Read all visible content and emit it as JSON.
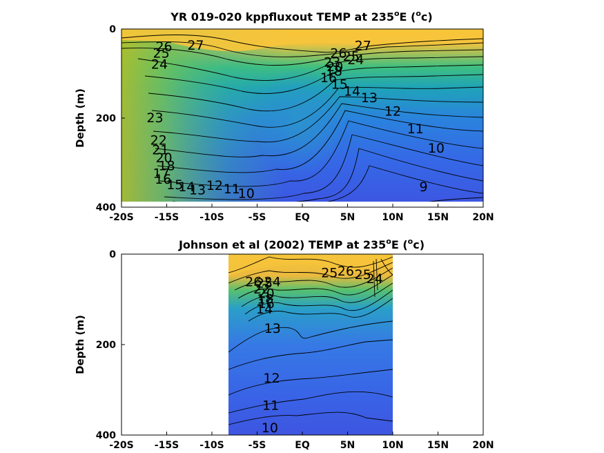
{
  "chart_data": [
    {
      "type": "contour",
      "title_prefix": "YR 019-020 kppfluxout TEMP at 235",
      "title_deg": "o",
      "title_mid": "E (",
      "title_unit": "o",
      "title_end": "c)",
      "ylabel": "Depth (m)",
      "xlim": [
        -20,
        20
      ],
      "ylim": [
        0,
        400
      ],
      "y_reversed": true,
      "x_ticks": [
        {
          "v": -20,
          "label": "-20S"
        },
        {
          "v": -15,
          "label": "-15S"
        },
        {
          "v": -10,
          "label": "-10S"
        },
        {
          "v": -5,
          "label": "-5S"
        },
        {
          "v": 0,
          "label": "EQ"
        },
        {
          "v": 5,
          "label": "5N"
        },
        {
          "v": 10,
          "label": "10N"
        },
        {
          "v": 15,
          "label": "15N"
        },
        {
          "v": 20,
          "label": "20N"
        }
      ],
      "y_ticks": [
        {
          "v": 0,
          "label": "0"
        },
        {
          "v": 200,
          "label": "200"
        },
        {
          "v": 400,
          "label": "400"
        }
      ],
      "data_extent": {
        "x": [
          -20,
          20
        ],
        "y": [
          5,
          385
        ]
      },
      "contour_labels": [
        {
          "x": -15.3,
          "y": 40,
          "t": "26"
        },
        {
          "x": -15.6,
          "y": 55,
          "t": "25"
        },
        {
          "x": -15.8,
          "y": 80,
          "t": "24"
        },
        {
          "x": -11.8,
          "y": 37,
          "t": "27"
        },
        {
          "x": 6.7,
          "y": 38,
          "t": "27"
        },
        {
          "x": 4.0,
          "y": 55,
          "t": "26"
        },
        {
          "x": 5.4,
          "y": 62,
          "t": "25"
        },
        {
          "x": 5.9,
          "y": 70,
          "t": "24"
        },
        {
          "x": 3.3,
          "y": 75,
          "t": "23"
        },
        {
          "x": 3.6,
          "y": 85,
          "t": "20"
        },
        {
          "x": 3.5,
          "y": 95,
          "t": "18"
        },
        {
          "x": 2.9,
          "y": 110,
          "t": "16"
        },
        {
          "x": 4.1,
          "y": 125,
          "t": "15"
        },
        {
          "x": 5.5,
          "y": 140,
          "t": "14"
        },
        {
          "x": 7.4,
          "y": 155,
          "t": "13"
        },
        {
          "x": 10.0,
          "y": 185,
          "t": "12"
        },
        {
          "x": 12.5,
          "y": 225,
          "t": "11"
        },
        {
          "x": 14.8,
          "y": 268,
          "t": "10"
        },
        {
          "x": 13.4,
          "y": 355,
          "t": "9"
        },
        {
          "x": -16.3,
          "y": 200,
          "t": "23"
        },
        {
          "x": -15.9,
          "y": 250,
          "t": "22"
        },
        {
          "x": -15.7,
          "y": 272,
          "t": "21"
        },
        {
          "x": -15.3,
          "y": 290,
          "t": "20"
        },
        {
          "x": -15.0,
          "y": 308,
          "t": "18"
        },
        {
          "x": -15.6,
          "y": 325,
          "t": "17"
        },
        {
          "x": -15.4,
          "y": 338,
          "t": "16"
        },
        {
          "x": -14.1,
          "y": 350,
          "t": "15"
        },
        {
          "x": -12.8,
          "y": 355,
          "t": "14"
        },
        {
          "x": -11.6,
          "y": 362,
          "t": "13"
        },
        {
          "x": -9.7,
          "y": 352,
          "t": "12"
        },
        {
          "x": -7.8,
          "y": 360,
          "t": "11"
        },
        {
          "x": -6.2,
          "y": 370,
          "t": "10"
        }
      ]
    },
    {
      "type": "contour",
      "title_prefix": "Johnson et al (2002) TEMP at 235",
      "title_deg": "o",
      "title_mid": "E (",
      "title_unit": "o",
      "title_end": "c)",
      "ylabel": "Depth (m)",
      "xlim": [
        -20,
        20
      ],
      "ylim": [
        0,
        400
      ],
      "y_reversed": true,
      "x_ticks": [
        {
          "v": -20,
          "label": "-20S"
        },
        {
          "v": -15,
          "label": "-15S"
        },
        {
          "v": -10,
          "label": "-10S"
        },
        {
          "v": -5,
          "label": "-5S"
        },
        {
          "v": 0,
          "label": "EQ"
        },
        {
          "v": 5,
          "label": "5N"
        },
        {
          "v": 10,
          "label": "10N"
        },
        {
          "v": 15,
          "label": "15N"
        },
        {
          "v": 20,
          "label": "20N"
        }
      ],
      "y_ticks": [
        {
          "v": 0,
          "label": "0"
        },
        {
          "v": 200,
          "label": "200"
        },
        {
          "v": 400,
          "label": "400"
        }
      ],
      "data_extent": {
        "x": [
          -8,
          10
        ],
        "y": [
          0,
          400
        ]
      },
      "contour_labels": [
        {
          "x": -5.4,
          "y": 62,
          "t": "26"
        },
        {
          "x": -4.2,
          "y": 65,
          "t": "25"
        },
        {
          "x": -3.3,
          "y": 62,
          "t": "24"
        },
        {
          "x": -4.5,
          "y": 78,
          "t": "22"
        },
        {
          "x": -4.0,
          "y": 88,
          "t": "20"
        },
        {
          "x": -4.1,
          "y": 100,
          "t": "18"
        },
        {
          "x": -4.0,
          "y": 110,
          "t": "16"
        },
        {
          "x": -4.2,
          "y": 122,
          "t": "14"
        },
        {
          "x": -3.3,
          "y": 165,
          "t": "13"
        },
        {
          "x": 3.0,
          "y": 42,
          "t": "25"
        },
        {
          "x": 4.8,
          "y": 38,
          "t": "26"
        },
        {
          "x": 6.7,
          "y": 46,
          "t": "25"
        },
        {
          "x": 8.0,
          "y": 55,
          "t": "24"
        },
        {
          "x": -3.4,
          "y": 275,
          "t": "12"
        },
        {
          "x": -3.5,
          "y": 335,
          "t": "11"
        },
        {
          "x": -3.6,
          "y": 385,
          "t": "10"
        }
      ]
    }
  ]
}
